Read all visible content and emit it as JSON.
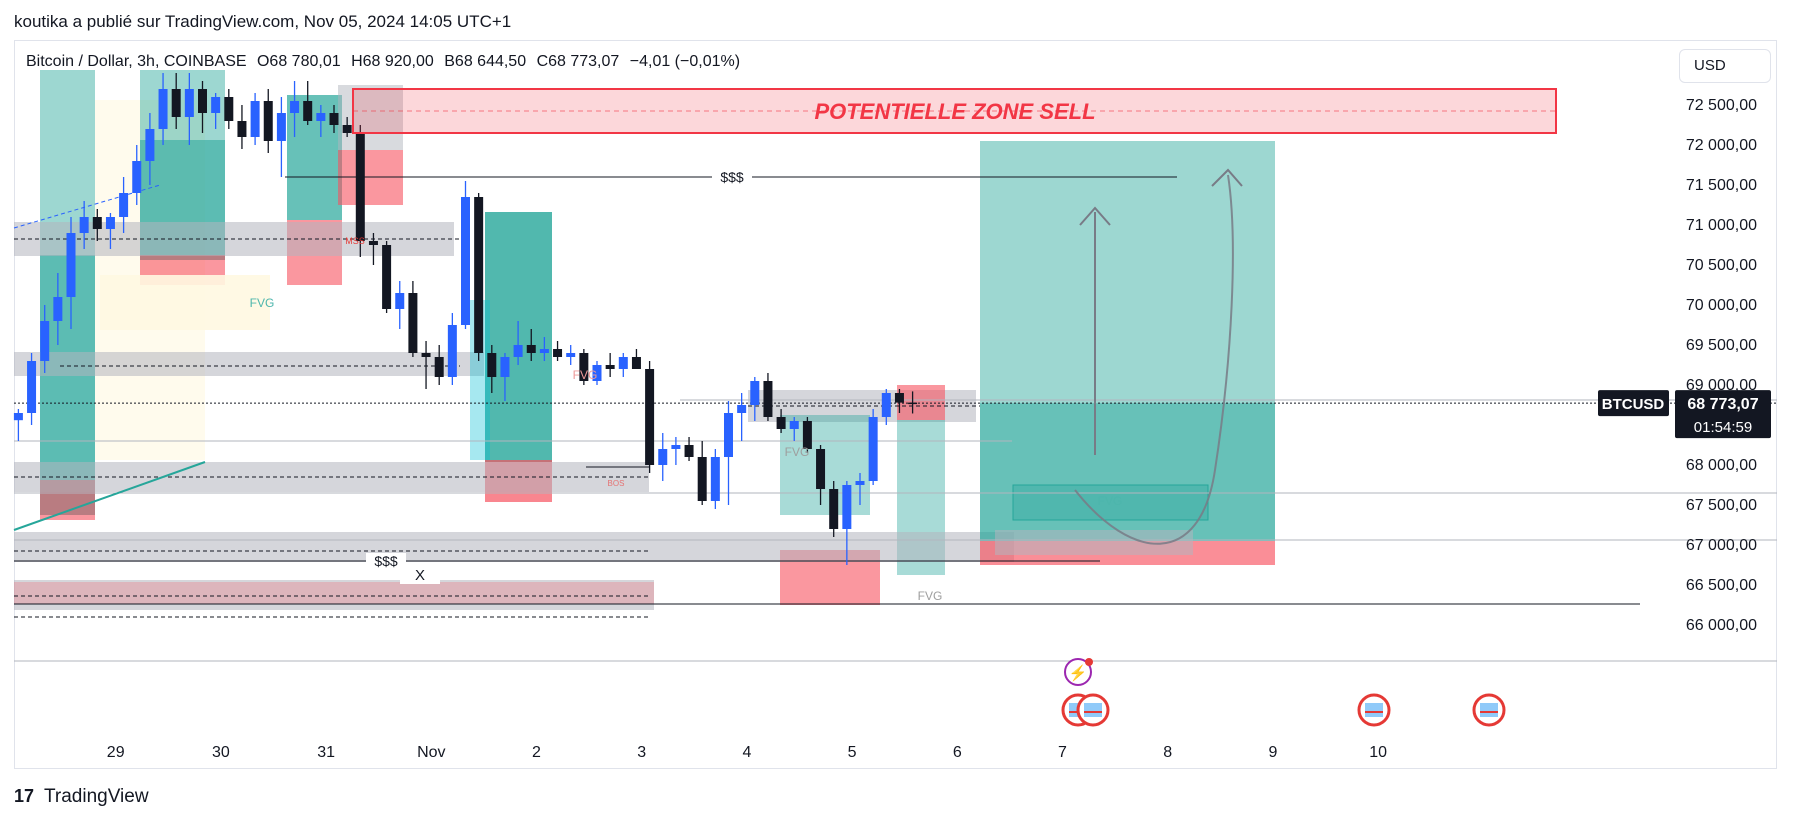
{
  "header": {
    "published_by": "koutika a publié sur TradingView.com, Nov 05, 2024 14:05 UTC+1"
  },
  "legend": {
    "symbol": "Bitcoin / Dollar, 3h, COINBASE",
    "open": "O68 780,01",
    "high": "H68 920,00",
    "low": "B68 644,50",
    "close": "C68 773,07",
    "change": "−4,01 (−0,01%)"
  },
  "currency_button": "USD",
  "footer": {
    "brand": "TradingView",
    "logo_glyph": "17"
  },
  "annotations": {
    "zone_sell": "POTENTIELLE ZONE SELL",
    "liquidity_top": "$$$",
    "liquidity_bottom": "$$$",
    "x_mark": "X",
    "fvg_1": "FVG",
    "fvg_2": "FVG",
    "fvg_3": "FVG",
    "fvg_4": "FVG",
    "fvg_5": "FVG",
    "mss": "MSS",
    "bos": "BOS"
  },
  "price_tag": {
    "symbol": "BTCUSD",
    "price": "68 773,07",
    "countdown": "01:54:59"
  },
  "colors": {
    "bull": "#2962ff",
    "bear": "#131722",
    "sell_zone": "#f23645",
    "long_target": "#26a69a",
    "long_stop": "#f7525f",
    "grid_gray": "#787b86"
  },
  "chart_data": {
    "type": "candlestick",
    "symbol": "BTCUSD",
    "timeframe": "3h",
    "exchange": "COINBASE",
    "ylim": [
      65700,
      72950
    ],
    "y_ticks": [
      66000,
      66500,
      67000,
      67500,
      68000,
      68500,
      69000,
      69500,
      70000,
      70500,
      71000,
      71500,
      72000,
      72500
    ],
    "y_tick_labels": [
      "66 000,00",
      "66 500,00",
      "67 000,00",
      "67 500,00",
      "68 000,00",
      "68 500,00",
      "69 000,00",
      "69 500,00",
      "70 000,00",
      "70 500,00",
      "71 000,00",
      "71 500,00",
      "72 000,00",
      "72 500,00"
    ],
    "x_tick_labels": [
      "29",
      "30",
      "31",
      "Nov",
      "2",
      "3",
      "4",
      "5",
      "6",
      "7",
      "8",
      "9",
      "10"
    ],
    "x_tick_index": [
      7.4,
      15.4,
      23.4,
      31.4,
      39.4,
      47.4,
      55.4,
      63.4,
      71.4,
      79.4,
      87.4,
      95.4,
      103.4
    ],
    "candles": [
      {
        "o": 68560,
        "h": 68700,
        "l": 68300,
        "c": 68650
      },
      {
        "o": 68650,
        "h": 69400,
        "l": 68500,
        "c": 69300
      },
      {
        "o": 69300,
        "h": 70000,
        "l": 69150,
        "c": 69800
      },
      {
        "o": 69800,
        "h": 70400,
        "l": 69500,
        "c": 70100
      },
      {
        "o": 70100,
        "h": 71100,
        "l": 69700,
        "c": 70900
      },
      {
        "o": 70900,
        "h": 71300,
        "l": 70700,
        "c": 71100
      },
      {
        "o": 71100,
        "h": 71200,
        "l": 70800,
        "c": 70950
      },
      {
        "o": 70950,
        "h": 71150,
        "l": 70700,
        "c": 71100
      },
      {
        "o": 71100,
        "h": 71600,
        "l": 70900,
        "c": 71400
      },
      {
        "o": 71400,
        "h": 72000,
        "l": 71250,
        "c": 71800
      },
      {
        "o": 71800,
        "h": 72400,
        "l": 71500,
        "c": 72200
      },
      {
        "o": 72200,
        "h": 72900,
        "l": 72000,
        "c": 72700
      },
      {
        "o": 72700,
        "h": 72900,
        "l": 72200,
        "c": 72350
      },
      {
        "o": 72350,
        "h": 72900,
        "l": 72000,
        "c": 72700
      },
      {
        "o": 72700,
        "h": 72800,
        "l": 72150,
        "c": 72400
      },
      {
        "o": 72400,
        "h": 72650,
        "l": 72200,
        "c": 72600
      },
      {
        "o": 72600,
        "h": 72700,
        "l": 72200,
        "c": 72300
      },
      {
        "o": 72300,
        "h": 72500,
        "l": 71950,
        "c": 72100
      },
      {
        "o": 72100,
        "h": 72650,
        "l": 72000,
        "c": 72550
      },
      {
        "o": 72550,
        "h": 72700,
        "l": 71900,
        "c": 72050
      },
      {
        "o": 72050,
        "h": 72600,
        "l": 71600,
        "c": 72400
      },
      {
        "o": 72400,
        "h": 72800,
        "l": 72100,
        "c": 72550
      },
      {
        "o": 72550,
        "h": 72800,
        "l": 72250,
        "c": 72300
      },
      {
        "o": 72300,
        "h": 72500,
        "l": 72100,
        "c": 72400
      },
      {
        "o": 72400,
        "h": 72500,
        "l": 72150,
        "c": 72250
      },
      {
        "o": 72250,
        "h": 72350,
        "l": 72100,
        "c": 72150
      },
      {
        "o": 72150,
        "h": 72250,
        "l": 70600,
        "c": 70800
      },
      {
        "o": 70800,
        "h": 70900,
        "l": 70500,
        "c": 70750
      },
      {
        "o": 70750,
        "h": 70800,
        "l": 69900,
        "c": 69950
      },
      {
        "o": 69950,
        "h": 70300,
        "l": 69700,
        "c": 70150
      },
      {
        "o": 70150,
        "h": 70300,
        "l": 69350,
        "c": 69400
      },
      {
        "o": 69400,
        "h": 69550,
        "l": 68950,
        "c": 69350
      },
      {
        "o": 69350,
        "h": 69500,
        "l": 69000,
        "c": 69100
      },
      {
        "o": 69100,
        "h": 69900,
        "l": 69000,
        "c": 69750
      },
      {
        "o": 69750,
        "h": 71550,
        "l": 69700,
        "c": 71350
      },
      {
        "o": 71350,
        "h": 71400,
        "l": 69300,
        "c": 69400
      },
      {
        "o": 69400,
        "h": 69500,
        "l": 68900,
        "c": 69100
      },
      {
        "o": 69100,
        "h": 69400,
        "l": 68800,
        "c": 69350
      },
      {
        "o": 69350,
        "h": 69800,
        "l": 69250,
        "c": 69500
      },
      {
        "o": 69500,
        "h": 69700,
        "l": 69300,
        "c": 69400
      },
      {
        "o": 69400,
        "h": 69600,
        "l": 69300,
        "c": 69450
      },
      {
        "o": 69450,
        "h": 69550,
        "l": 69300,
        "c": 69350
      },
      {
        "o": 69350,
        "h": 69500,
        "l": 69250,
        "c": 69400
      },
      {
        "o": 69400,
        "h": 69450,
        "l": 69000,
        "c": 69050
      },
      {
        "o": 69050,
        "h": 69300,
        "l": 69000,
        "c": 69250
      },
      {
        "o": 69250,
        "h": 69400,
        "l": 69100,
        "c": 69200
      },
      {
        "o": 69200,
        "h": 69400,
        "l": 69100,
        "c": 69350
      },
      {
        "o": 69350,
        "h": 69450,
        "l": 69200,
        "c": 69200
      },
      {
        "o": 69200,
        "h": 69300,
        "l": 67900,
        "c": 68000
      },
      {
        "o": 68000,
        "h": 68400,
        "l": 67800,
        "c": 68200
      },
      {
        "o": 68200,
        "h": 68350,
        "l": 68000,
        "c": 68250
      },
      {
        "o": 68250,
        "h": 68350,
        "l": 68050,
        "c": 68100
      },
      {
        "o": 68100,
        "h": 68300,
        "l": 67500,
        "c": 67550
      },
      {
        "o": 67550,
        "h": 68200,
        "l": 67450,
        "c": 68100
      },
      {
        "o": 68100,
        "h": 68800,
        "l": 67500,
        "c": 68650
      },
      {
        "o": 68650,
        "h": 68900,
        "l": 68300,
        "c": 68750
      },
      {
        "o": 68750,
        "h": 69100,
        "l": 68550,
        "c": 69050
      },
      {
        "o": 69050,
        "h": 69150,
        "l": 68550,
        "c": 68600
      },
      {
        "o": 68600,
        "h": 68700,
        "l": 68400,
        "c": 68450
      },
      {
        "o": 68450,
        "h": 68600,
        "l": 68300,
        "c": 68550
      },
      {
        "o": 68550,
        "h": 68600,
        "l": 68150,
        "c": 68200
      },
      {
        "o": 68200,
        "h": 68250,
        "l": 67500,
        "c": 67700
      },
      {
        "o": 67700,
        "h": 67800,
        "l": 67100,
        "c": 67200
      },
      {
        "o": 67200,
        "h": 67800,
        "l": 66750,
        "c": 67750
      },
      {
        "o": 67750,
        "h": 67900,
        "l": 67500,
        "c": 67800
      },
      {
        "o": 67800,
        "h": 68700,
        "l": 67750,
        "c": 68600
      },
      {
        "o": 68600,
        "h": 68950,
        "l": 68500,
        "c": 68900
      },
      {
        "o": 68900,
        "h": 68950,
        "l": 68650,
        "c": 68780
      },
      {
        "o": 68780,
        "h": 68920,
        "l": 68644,
        "c": 68773
      }
    ],
    "levels": {
      "liquidity_high": 71600,
      "liquidity_low": 66800,
      "current_price": 68773.07
    },
    "zones": {
      "potential_sell": [
        72150,
        72700
      ],
      "long_target": [
        67050,
        72050
      ],
      "long_stop": [
        66750,
        67050
      ]
    }
  }
}
